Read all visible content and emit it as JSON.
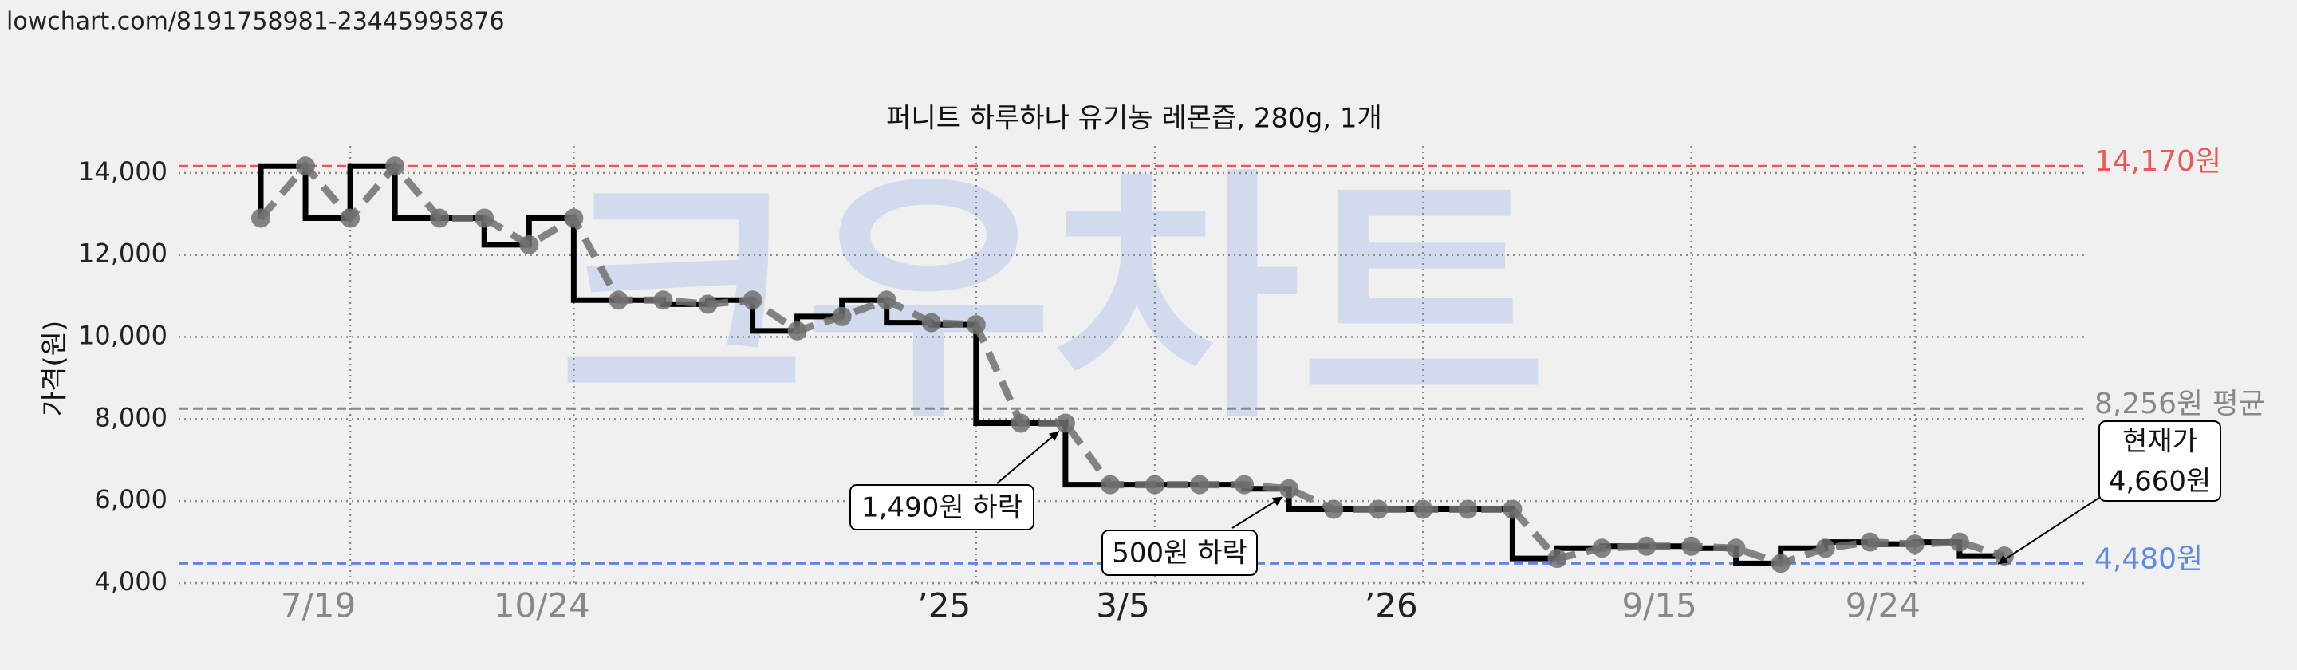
{
  "header": {
    "url": "lowchart.com/8191758981-23445995876"
  },
  "chart_data": {
    "type": "line",
    "title": "퍼니트 하루하나 유기농 레몬즙, 280g, 1개",
    "watermark": "크우차트",
    "y_label": "가격(원)",
    "categories": [
      null,
      null,
      "7/19",
      null,
      null,
      null,
      null,
      "10/24",
      null,
      null,
      null,
      null,
      null,
      null,
      null,
      null,
      "’25",
      null,
      null,
      null,
      "3/5",
      null,
      null,
      null,
      null,
      null,
      "’26",
      null,
      null,
      null,
      null,
      null,
      "9/15",
      null,
      null,
      null,
      null,
      "9/24",
      null,
      null
    ],
    "series": [
      {
        "color": "#707070",
        "step_color": "#000000",
        "values": [
          12900,
          14170,
          12900,
          14170,
          12900,
          12900,
          12250,
          12900,
          10900,
          10900,
          10800,
          10900,
          10150,
          10500,
          10900,
          10350,
          10300,
          7900,
          7900,
          6400,
          6400,
          6400,
          6400,
          6300,
          5800,
          5800,
          5800,
          5800,
          5800,
          4600,
          4850,
          4900,
          4900,
          4850,
          4480,
          4850,
          5000,
          4950,
          5000,
          4660
        ]
      }
    ],
    "ylim": [
      4000,
      14660
    ],
    "yticks": [
      {
        "value": 4000,
        "label": "4,000"
      },
      {
        "value": 6000,
        "label": "6,000"
      },
      {
        "value": 8000,
        "label": "8,000"
      },
      {
        "value": 10000,
        "label": "10,000"
      },
      {
        "value": 12000,
        "label": "12,000"
      },
      {
        "value": 14000,
        "label": "14,000"
      }
    ],
    "grid": true,
    "reference_lines": [
      {
        "value": 14170,
        "label": "14,170원",
        "color": "#ee5555"
      },
      {
        "value": 8256,
        "label": "8,256원 평균",
        "color": "#888888"
      },
      {
        "value": 4480,
        "label": "4,480원",
        "color": "#5b8ae6"
      }
    ],
    "annotations": [
      {
        "lines": [
          "1,490원 하락"
        ]
      },
      {
        "lines": [
          "500원 하락"
        ]
      },
      {
        "lines": [
          "현재가",
          "4,660원"
        ]
      }
    ]
  }
}
